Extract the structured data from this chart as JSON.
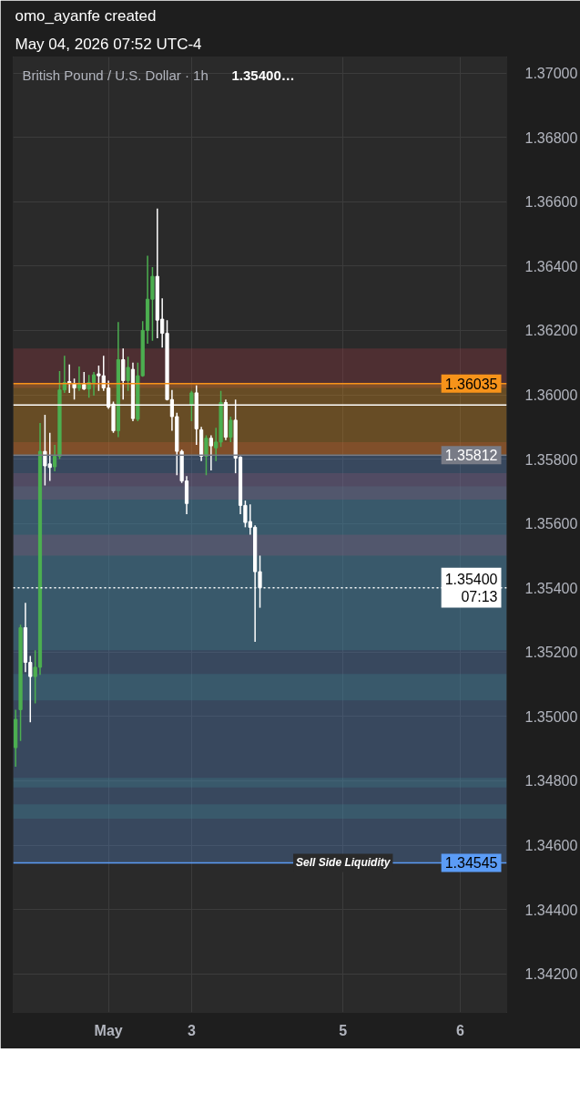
{
  "chart_data": {
    "type": "candlestick",
    "title": "omo_ayanfe created",
    "subtitle": "May 04, 2026 07:52 UTC-4",
    "categories": [
      null,
      null,
      null,
      null,
      null,
      null,
      null,
      null,
      null,
      null,
      null,
      null,
      null,
      null,
      null,
      null,
      null,
      null,
      null,
      "May",
      null,
      null,
      null,
      null,
      null,
      null,
      null,
      null,
      null,
      null,
      null,
      null,
      null,
      null,
      null,
      null,
      "3",
      null,
      null,
      null,
      null,
      null,
      null,
      null,
      null,
      null,
      null,
      null,
      null,
      null,
      null,
      null,
      null,
      null,
      null,
      null,
      null,
      null,
      null,
      null,
      null,
      null,
      null,
      null,
      null,
      null,
      null,
      "5",
      null,
      null,
      null,
      null,
      null,
      null,
      null,
      null,
      null,
      null,
      null,
      null,
      null,
      null,
      null,
      null,
      null,
      null,
      null,
      null,
      null,
      null,
      null,
      "6",
      null,
      null,
      null,
      null,
      null,
      null,
      null,
      null,
      null
    ],
    "ohlc": [
      [
        1.34903,
        1.35021,
        1.34844,
        1.34991
      ],
      [
        1.35021,
        1.35285,
        1.34924,
        1.35276
      ],
      [
        1.35276,
        1.35353,
        1.35138,
        1.35168
      ],
      [
        1.35168,
        1.35188,
        1.34982,
        1.35124
      ],
      [
        1.35124,
        1.35206,
        1.35041,
        1.35153
      ],
      [
        1.35153,
        1.35912,
        1.35129,
        1.35824
      ],
      [
        1.35824,
        1.35938,
        1.35718,
        1.35779
      ],
      [
        1.35785,
        1.35882,
        1.35732,
        1.35774
      ],
      [
        1.35776,
        1.35844,
        1.35762,
        1.35809
      ],
      [
        1.35809,
        1.36074,
        1.358,
        1.36015
      ],
      [
        1.36015,
        1.36121,
        1.36006,
        1.36038
      ],
      [
        1.36041,
        1.36094,
        1.36006,
        1.36035
      ],
      [
        1.36035,
        1.3605,
        1.35985,
        1.36021
      ],
      [
        1.36021,
        1.36088,
        1.36012,
        1.36032
      ],
      [
        1.36032,
        1.36071,
        1.36015,
        1.36018
      ],
      [
        1.36018,
        1.36062,
        1.35991,
        1.36038
      ],
      [
        1.36038,
        1.36071,
        1.35997,
        1.36062
      ],
      [
        1.36065,
        1.36091,
        1.36012,
        1.36059
      ],
      [
        1.36059,
        1.36121,
        1.36012,
        1.36021
      ],
      [
        1.36021,
        1.36044,
        1.35956,
        1.35962
      ],
      [
        1.35971,
        1.35979,
        1.35882,
        1.35888
      ],
      [
        1.35888,
        1.36226,
        1.35868,
        1.36109
      ],
      [
        1.36109,
        1.36144,
        1.35985,
        1.36044
      ],
      [
        1.36044,
        1.36118,
        1.36012,
        1.36085
      ],
      [
        1.36079,
        1.361,
        1.35918,
        1.35926
      ],
      [
        1.35924,
        1.361,
        1.35918,
        1.36059
      ],
      [
        1.36059,
        1.36229,
        1.36056,
        1.362
      ],
      [
        1.362,
        1.36432,
        1.36159,
        1.36297
      ],
      [
        1.36297,
        1.36397,
        1.36168,
        1.36368
      ],
      [
        1.36368,
        1.36579,
        1.36176,
        1.36232
      ],
      [
        1.36235,
        1.363,
        1.36147,
        1.36191
      ],
      [
        1.36191,
        1.36232,
        1.35982,
        1.35985
      ],
      [
        1.35985,
        1.36015,
        1.35888,
        1.35932
      ],
      [
        1.35932,
        1.35944,
        1.3575,
        1.35824
      ],
      [
        1.35824,
        1.35829,
        1.35726,
        1.35732
      ],
      [
        1.35732,
        1.35747,
        1.35629,
        1.35662
      ],
      [
        1.35968,
        1.36012,
        1.35918,
        1.36006
      ],
      [
        1.36006,
        1.36029,
        1.35844,
        1.35894
      ],
      [
        1.35891,
        1.359,
        1.35794,
        1.35809
      ],
      [
        1.35809,
        1.35874,
        1.3575,
        1.35865
      ],
      [
        1.35865,
        1.35874,
        1.35765,
        1.35841
      ],
      [
        1.35835,
        1.35897,
        1.35794,
        1.35853
      ],
      [
        1.35853,
        1.36012,
        1.35838,
        1.35976
      ],
      [
        1.35976,
        1.35985,
        1.35859,
        1.35868
      ],
      [
        1.35868,
        1.35932,
        1.35853,
        1.35921
      ],
      [
        1.35921,
        1.35985,
        1.35756,
        1.35803
      ],
      [
        1.35806,
        1.35809,
        1.35629,
        1.35656
      ],
      [
        1.35656,
        1.35671,
        1.35588,
        1.35603
      ],
      [
        1.35606,
        1.35659,
        1.35565,
        1.35588
      ],
      [
        1.35588,
        1.35594,
        1.35232,
        1.3545
      ],
      [
        1.3545,
        1.355,
        1.35338,
        1.354
      ],
      null,
      null,
      null,
      null,
      null,
      null,
      null,
      null,
      null,
      null,
      null,
      null,
      null,
      null,
      null,
      null,
      null,
      null,
      null,
      null,
      null,
      null,
      null,
      null,
      null,
      null,
      null,
      null,
      null,
      null,
      null,
      null,
      null,
      null,
      null,
      null,
      null,
      null,
      null,
      null,
      null,
      null,
      null,
      null,
      null,
      null,
      null,
      null,
      null,
      null
    ],
    "colors": [
      "#4caf50",
      "#4caf50",
      "#ffffff",
      "#ffffff",
      "#4caf50",
      "#4caf50",
      "#ffffff",
      "#ffffff",
      "#4caf50",
      "#4caf50",
      "#4caf50",
      "#ffffff",
      "#ffffff",
      "#4caf50",
      "#ffffff",
      "#4caf50",
      "#4caf50",
      "#ffffff",
      "#ffffff",
      "#ffffff",
      "#ffffff",
      "#4caf50",
      "#ffffff",
      "#4caf50",
      "#ffffff",
      "#4caf50",
      "#4caf50",
      "#4caf50",
      "#4caf50",
      "#ffffff",
      "#ffffff",
      "#ffffff",
      "#ffffff",
      "#ffffff",
      "#ffffff",
      "#ffffff",
      "#4caf50",
      "#ffffff",
      "#ffffff",
      "#4caf50",
      "#ffffff",
      "#4caf50",
      "#4caf50",
      "#ffffff",
      "#4caf50",
      "#ffffff",
      "#ffffff",
      "#ffffff",
      "#ffffff",
      "#ffffff",
      "#ffffff",
      null,
      null,
      null,
      null,
      null,
      null,
      null,
      null,
      null,
      null,
      null,
      null,
      null,
      null,
      null,
      null,
      null,
      null,
      null,
      null,
      null,
      null,
      null,
      null,
      null,
      null,
      null,
      null,
      null,
      null,
      null,
      null,
      null,
      null,
      null,
      null,
      null,
      null,
      null,
      null,
      null,
      null,
      null,
      null,
      null,
      null,
      null,
      null,
      null,
      null
    ],
    "ylim": [
      1.3408,
      1.3705
    ],
    "yticks": [
      {
        "value": 1.342,
        "label": "1.34200"
      },
      {
        "value": 1.344,
        "label": "1.34400"
      },
      {
        "value": 1.346,
        "label": "1.34600"
      },
      {
        "value": 1.348,
        "label": "1.34800"
      },
      {
        "value": 1.35,
        "label": "1.35000"
      },
      {
        "value": 1.352,
        "label": "1.35200"
      },
      {
        "value": 1.354,
        "label": "1.35400"
      },
      {
        "value": 1.356,
        "label": "1.35600"
      },
      {
        "value": 1.358,
        "label": "1.35800"
      },
      {
        "value": 1.36,
        "label": "1.36000"
      },
      {
        "value": 1.362,
        "label": "1.36200"
      },
      {
        "value": 1.364,
        "label": "1.36400"
      },
      {
        "value": 1.366,
        "label": "1.36600"
      },
      {
        "value": 1.368,
        "label": "1.36800"
      },
      {
        "value": 1.37,
        "label": "1.37000"
      }
    ],
    "grid": true,
    "bands": [
      {
        "axis": "y",
        "from": 1.35206,
        "to": 1.35715,
        "color": "#2f7d6a"
      },
      {
        "axis": "y",
        "from": 1.3505,
        "to": 1.35132,
        "color": "#2f7d6a"
      },
      {
        "axis": "y",
        "from": 1.34779,
        "to": 1.34809,
        "color": "#2f7d6a"
      },
      {
        "axis": "y",
        "from": 1.34682,
        "to": 1.34727,
        "color": "#2f7d6a"
      },
      {
        "axis": "y",
        "from": 1.36021,
        "to": 1.36144,
        "color": "#a33a44"
      },
      {
        "axis": "y",
        "from": 1.35815,
        "to": 1.35853,
        "color": "#a33a44"
      },
      {
        "axis": "y",
        "from": 1.35674,
        "to": 1.35756,
        "color": "#a33a44"
      },
      {
        "axis": "y",
        "from": 1.355,
        "to": 1.35565,
        "color": "#a33a44"
      },
      {
        "axis": "y",
        "from": 1.35812,
        "to": 1.36035,
        "color": "#f59c1a"
      },
      {
        "axis": "y",
        "from": 1.34545,
        "to": 1.35812,
        "color": "#5b8fd6"
      }
    ],
    "ref_lines": [
      {
        "axis": "y",
        "value": 1.35968,
        "color": "#ffffff"
      },
      {
        "axis": "y",
        "value": 1.36035,
        "label": "1.36035",
        "color": "#f7931a"
      },
      {
        "axis": "y",
        "value": 1.35812,
        "label": "1.35812",
        "color": "#787b86"
      },
      {
        "axis": "y",
        "value": 1.354,
        "label": "1.35400\n07:13",
        "color": "#ffffff",
        "line_style": "dotted"
      },
      {
        "axis": "y",
        "value": 1.34545,
        "label": "1.34545",
        "color": "#5b9cf6"
      }
    ],
    "annotations": [
      "British Pound / U.S. Dollar · 1h",
      "1.35400…",
      {
        "text": "Sell Side Liquidity",
        "x": "5",
        "y": 1.34545
      }
    ]
  }
}
